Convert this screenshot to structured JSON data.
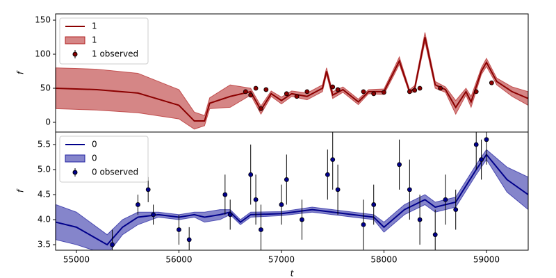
{
  "chart_data": [
    {
      "type": "line",
      "ylabel": "f",
      "xlim": [
        54797,
        59407
      ],
      "ylim": [
        -14.3,
        159.2
      ],
      "yticks": [
        0,
        50,
        100,
        150
      ],
      "legend": "upper left",
      "series": [
        {
          "name": "1",
          "kind": "line",
          "color": "#8b0000",
          "x": [
            54800,
            55200,
            55600,
            56000,
            56150,
            56250,
            56300,
            56500,
            56700,
            56800,
            56900,
            57000,
            57100,
            57250,
            57400,
            57440,
            57500,
            57600,
            57750,
            57850,
            58000,
            58100,
            58150,
            58250,
            58300,
            58400,
            58500,
            58600,
            58700,
            58800,
            58850,
            58950,
            59000,
            59100,
            59250,
            59407
          ],
          "values": [
            50,
            48,
            43,
            25,
            2,
            2,
            28,
            38,
            45,
            18,
            42,
            32,
            42,
            38,
            50,
            75,
            40,
            48,
            30,
            45,
            45,
            75,
            90,
            45,
            50,
            125,
            55,
            48,
            22,
            45,
            30,
            75,
            88,
            60,
            45,
            35
          ]
        },
        {
          "name": "1",
          "kind": "band",
          "color": "#b22222",
          "x": [
            54800,
            55200,
            55600,
            56000,
            56150,
            56250,
            56300,
            56500,
            56700,
            56800,
            56900,
            57000,
            57100,
            57250,
            57400,
            57440,
            57500,
            57600,
            57750,
            57850,
            58000,
            58100,
            58150,
            58250,
            58300,
            58400,
            58500,
            58600,
            58700,
            58800,
            58850,
            58950,
            59000,
            59100,
            59250,
            59407
          ],
          "lower": [
            20,
            18,
            14,
            5,
            -10,
            -5,
            20,
            22,
            40,
            12,
            38,
            27,
            38,
            33,
            45,
            70,
            35,
            44,
            26,
            42,
            41,
            70,
            85,
            42,
            46,
            118,
            50,
            44,
            12,
            40,
            22,
            70,
            82,
            55,
            38,
            25
          ],
          "upper": [
            80,
            78,
            72,
            48,
            15,
            10,
            36,
            55,
            50,
            24,
            46,
            37,
            46,
            43,
            55,
            80,
            45,
            52,
            34,
            48,
            49,
            80,
            96,
            48,
            54,
            132,
            60,
            52,
            32,
            50,
            38,
            80,
            94,
            65,
            52,
            45
          ]
        },
        {
          "name": "1 observed",
          "kind": "errorbar",
          "color": "#8b0000",
          "x": [
            56650,
            56700,
            56750,
            56800,
            56850,
            57050,
            57150,
            57250,
            57500,
            57550,
            57800,
            57900,
            58000,
            58250,
            58300,
            58350,
            58550,
            58900,
            59050
          ],
          "values": [
            45,
            40,
            50,
            20,
            48,
            42,
            38,
            45,
            52,
            48,
            45,
            42,
            44,
            45,
            47,
            50,
            50,
            45,
            58
          ],
          "errors": [
            3,
            3,
            3,
            3,
            3,
            3,
            3,
            3,
            3,
            3,
            3,
            3,
            3,
            3,
            3,
            3,
            3,
            3,
            3
          ]
        }
      ]
    },
    {
      "type": "line",
      "ylabel": "f",
      "xlabel": "t",
      "xlim": [
        54797,
        59407
      ],
      "xticks": [
        55000,
        56000,
        57000,
        58000,
        59000
      ],
      "ylim": [
        3.39,
        5.75
      ],
      "yticks": [
        3.5,
        {
          "value": 4,
          "label": "4.0"
        },
        4.5,
        {
          "value": 5,
          "label": "5.0"
        },
        5.5
      ],
      "legend": "upper left",
      "series": [
        {
          "name": "0",
          "kind": "line",
          "color": "#00008b",
          "x": [
            54800,
            55000,
            55300,
            55450,
            55600,
            55800,
            56000,
            56150,
            56250,
            56400,
            56500,
            56600,
            56700,
            57000,
            57300,
            57500,
            57700,
            57900,
            58000,
            58200,
            58400,
            58500,
            58700,
            58900,
            59000,
            59200,
            59407
          ],
          "values": [
            3.95,
            3.85,
            3.5,
            3.85,
            4.05,
            4.1,
            4.05,
            4.1,
            4.05,
            4.1,
            4.15,
            3.95,
            4.1,
            4.12,
            4.2,
            4.15,
            4.1,
            4.05,
            3.85,
            4.2,
            4.4,
            4.25,
            4.35,
            5.0,
            5.3,
            4.8,
            4.5
          ]
        },
        {
          "name": "0",
          "kind": "band",
          "color": "#2020a0",
          "x": [
            54800,
            55000,
            55300,
            55450,
            55600,
            55800,
            56000,
            56150,
            56250,
            56400,
            56500,
            56600,
            56700,
            57000,
            57300,
            57500,
            57700,
            57900,
            58000,
            58200,
            58400,
            58500,
            58700,
            58900,
            59000,
            59200,
            59407
          ],
          "lower": [
            3.6,
            3.5,
            3.3,
            3.7,
            3.9,
            4.05,
            4.0,
            4.05,
            3.95,
            4.0,
            4.1,
            3.9,
            4.05,
            4.08,
            4.15,
            4.1,
            4.05,
            4.0,
            3.75,
            4.1,
            4.3,
            4.15,
            4.25,
            4.9,
            5.2,
            4.55,
            4.2
          ],
          "upper": [
            4.3,
            4.15,
            3.7,
            4.0,
            4.15,
            4.15,
            4.1,
            4.15,
            4.15,
            4.2,
            4.2,
            4.0,
            4.15,
            4.16,
            4.25,
            4.2,
            4.15,
            4.1,
            3.95,
            4.3,
            4.5,
            4.35,
            4.45,
            5.1,
            5.4,
            5.05,
            4.85
          ]
        },
        {
          "name": "0 observed",
          "kind": "errorbar",
          "color": "#00008b",
          "x": [
            55350,
            55600,
            55700,
            55750,
            56000,
            56100,
            56450,
            56500,
            56700,
            56750,
            56800,
            57000,
            57050,
            57200,
            57450,
            57500,
            57550,
            57800,
            57900,
            58150,
            58250,
            58350,
            58500,
            58600,
            58700,
            58900,
            58950,
            59000
          ],
          "values": [
            3.5,
            4.3,
            4.6,
            4.1,
            3.8,
            3.6,
            4.5,
            4.1,
            4.9,
            4.4,
            3.8,
            4.3,
            4.8,
            4.0,
            4.9,
            5.2,
            4.6,
            3.9,
            4.3,
            5.1,
            4.6,
            4.0,
            3.7,
            4.4,
            4.2,
            5.5,
            5.2,
            5.6
          ],
          "errors": [
            0.3,
            0.2,
            0.25,
            0.2,
            0.3,
            0.25,
            0.4,
            0.3,
            0.6,
            0.5,
            0.5,
            0.4,
            0.5,
            0.4,
            0.5,
            0.6,
            0.5,
            0.5,
            0.4,
            0.5,
            0.6,
            0.5,
            0.5,
            0.5,
            0.4,
            0.5,
            0.4,
            0.5
          ]
        }
      ]
    }
  ]
}
